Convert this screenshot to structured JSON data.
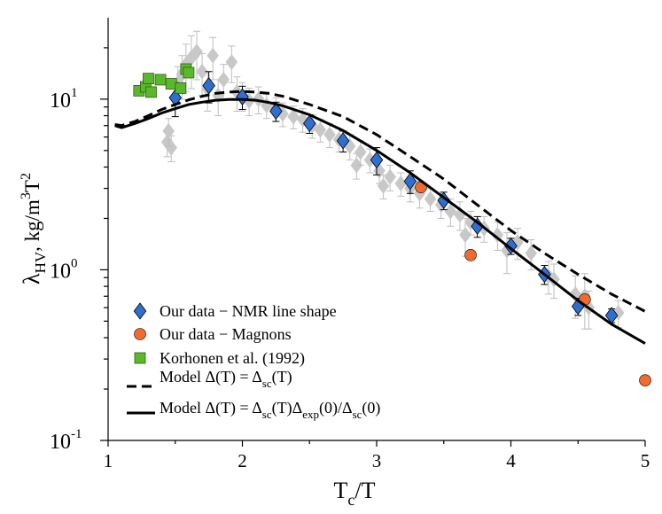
{
  "chart_data": {
    "type": "scatter",
    "title": "",
    "xlabel": {
      "main": "T",
      "sub": "c",
      "tail": "/T"
    },
    "ylabel": {
      "greek": "λ",
      "sub": "HV",
      "unit_a": ", kg/m",
      "sup3": "3",
      "unit_b": "T",
      "sup2": "2"
    },
    "xlim": [
      1,
      5
    ],
    "ylim": [
      0.1,
      30
    ],
    "yscale": "log",
    "x_ticks": [
      {
        "value": 1,
        "label": "1"
      },
      {
        "value": 2,
        "label": "2"
      },
      {
        "value": 3,
        "label": "3"
      },
      {
        "value": 4,
        "label": "4"
      },
      {
        "value": 5,
        "label": "5"
      }
    ],
    "y_ticks": [
      {
        "value": 0.1,
        "base": "10",
        "exp": "-1"
      },
      {
        "value": 1,
        "base": "10",
        "exp": "0"
      },
      {
        "value": 10,
        "base": "10",
        "exp": "1"
      }
    ],
    "legend_position": "bottom-left",
    "series": [
      {
        "name": "Gray background data",
        "marker": "diamond",
        "color": "#c8c8c8",
        "points": [
          {
            "x": 1.44,
            "y": 5.6,
            "err": 1.0
          },
          {
            "x": 1.47,
            "y": 5.2,
            "err": 0.9
          },
          {
            "x": 1.45,
            "y": 6.5,
            "err": 1.2
          },
          {
            "x": 1.52,
            "y": 12.5,
            "err": 3.0
          },
          {
            "x": 1.55,
            "y": 14.0,
            "err": 4.0
          },
          {
            "x": 1.58,
            "y": 16.0,
            "err": 5.0
          },
          {
            "x": 1.62,
            "y": 17.5,
            "err": 6.0
          },
          {
            "x": 1.66,
            "y": 19.0,
            "err": 6.0
          },
          {
            "x": 1.7,
            "y": 14.5,
            "err": 4.0
          },
          {
            "x": 1.74,
            "y": 11.5,
            "err": 3.0
          },
          {
            "x": 1.78,
            "y": 18.0,
            "err": 5.0
          },
          {
            "x": 1.82,
            "y": 10.5,
            "err": 2.5
          },
          {
            "x": 1.86,
            "y": 13.0,
            "err": 3.0
          },
          {
            "x": 1.92,
            "y": 16.5,
            "err": 4.0
          },
          {
            "x": 1.96,
            "y": 11.0,
            "err": 2.5
          },
          {
            "x": 2.0,
            "y": 10.5,
            "err": 2.0
          },
          {
            "x": 2.05,
            "y": 9.8,
            "err": 1.8
          },
          {
            "x": 2.12,
            "y": 10.0,
            "err": 1.8
          },
          {
            "x": 2.18,
            "y": 9.2,
            "err": 1.5
          },
          {
            "x": 2.25,
            "y": 8.8,
            "err": 1.4
          },
          {
            "x": 2.3,
            "y": 8.2,
            "err": 1.3
          },
          {
            "x": 2.38,
            "y": 7.9,
            "err": 1.2
          },
          {
            "x": 2.45,
            "y": 7.6,
            "err": 1.2
          },
          {
            "x": 2.52,
            "y": 7.0,
            "err": 1.1
          },
          {
            "x": 2.58,
            "y": 6.6,
            "err": 1.0
          },
          {
            "x": 2.65,
            "y": 6.2,
            "err": 1.0
          },
          {
            "x": 2.72,
            "y": 5.8,
            "err": 0.9
          },
          {
            "x": 2.8,
            "y": 5.3,
            "err": 0.9
          },
          {
            "x": 2.85,
            "y": 4.1,
            "err": 0.7
          },
          {
            "x": 2.88,
            "y": 4.9,
            "err": 0.8
          },
          {
            "x": 2.95,
            "y": 4.4,
            "err": 0.7
          },
          {
            "x": 3.02,
            "y": 3.8,
            "err": 0.6
          },
          {
            "x": 3.05,
            "y": 3.1,
            "err": 0.5
          },
          {
            "x": 3.1,
            "y": 3.5,
            "err": 0.6
          },
          {
            "x": 3.18,
            "y": 3.2,
            "err": 0.5
          },
          {
            "x": 3.25,
            "y": 3.0,
            "err": 0.5
          },
          {
            "x": 3.32,
            "y": 2.8,
            "err": 0.5
          },
          {
            "x": 3.4,
            "y": 2.6,
            "err": 0.4
          },
          {
            "x": 3.48,
            "y": 2.4,
            "err": 0.4
          },
          {
            "x": 3.55,
            "y": 2.2,
            "err": 0.4
          },
          {
            "x": 3.62,
            "y": 2.1,
            "err": 0.4
          },
          {
            "x": 3.66,
            "y": 1.6,
            "err": 0.4
          },
          {
            "x": 3.7,
            "y": 1.9,
            "err": 0.3
          },
          {
            "x": 3.8,
            "y": 1.75,
            "err": 0.3
          },
          {
            "x": 3.9,
            "y": 1.6,
            "err": 0.3
          },
          {
            "x": 3.97,
            "y": 1.3,
            "err": 0.35
          },
          {
            "x": 4.05,
            "y": 1.45,
            "err": 0.3
          },
          {
            "x": 4.15,
            "y": 1.25,
            "err": 0.25
          },
          {
            "x": 4.28,
            "y": 0.92,
            "err": 0.2
          },
          {
            "x": 4.32,
            "y": 0.88,
            "err": 0.2
          },
          {
            "x": 4.48,
            "y": 0.72,
            "err": 0.2
          },
          {
            "x": 4.55,
            "y": 0.7,
            "err": 0.25
          },
          {
            "x": 4.58,
            "y": 0.6,
            "err": 0.15
          },
          {
            "x": 4.8,
            "y": 0.56,
            "err": 0.1
          }
        ]
      },
      {
        "name": "Our data − NMR line shape",
        "marker": "diamond",
        "color": "#2f6fd0",
        "points": [
          {
            "x": 1.5,
            "y": 10.2,
            "err": 2.3
          },
          {
            "x": 1.75,
            "y": 12.0,
            "err": 2.5
          },
          {
            "x": 2.0,
            "y": 10.3,
            "err": 1.6
          },
          {
            "x": 2.25,
            "y": 8.5,
            "err": 1.1
          },
          {
            "x": 2.5,
            "y": 7.2,
            "err": 0.9
          },
          {
            "x": 2.75,
            "y": 5.7,
            "err": 0.8
          },
          {
            "x": 3.0,
            "y": 4.4,
            "err": 0.8
          },
          {
            "x": 3.25,
            "y": 3.3,
            "err": 0.5
          },
          {
            "x": 3.5,
            "y": 2.55,
            "err": 0.3
          },
          {
            "x": 3.75,
            "y": 1.8,
            "err": 0.25
          },
          {
            "x": 4.0,
            "y": 1.38,
            "err": 0.15
          },
          {
            "x": 4.25,
            "y": 0.94,
            "err": 0.12
          },
          {
            "x": 4.5,
            "y": 0.61,
            "err": 0.07
          },
          {
            "x": 4.75,
            "y": 0.54,
            "err": 0.05
          }
        ]
      },
      {
        "name": "Our data − Magnons",
        "marker": "circle",
        "color": "#f26a2e",
        "points": [
          {
            "x": 3.33,
            "y": 3.05
          },
          {
            "x": 3.7,
            "y": 1.22
          },
          {
            "x": 4.55,
            "y": 0.67
          },
          {
            "x": 5.0,
            "y": 0.225
          }
        ]
      },
      {
        "name": "Korhonen et al. (1992)",
        "marker": "square",
        "color": "#5ab82a",
        "points": [
          {
            "x": 1.23,
            "y": 11.2
          },
          {
            "x": 1.28,
            "y": 11.8
          },
          {
            "x": 1.3,
            "y": 13.2
          },
          {
            "x": 1.32,
            "y": 11.0
          },
          {
            "x": 1.39,
            "y": 13.0
          },
          {
            "x": 1.47,
            "y": 12.3
          },
          {
            "x": 1.54,
            "y": 11.6
          },
          {
            "x": 1.58,
            "y": 15.0
          },
          {
            "x": 1.6,
            "y": 14.3
          }
        ]
      },
      {
        "name": "Model Δ(T) = Δsc(T)",
        "marker": "line",
        "dash": "dashed",
        "color": "#000000",
        "x": [
          1.05,
          1.1,
          1.2,
          1.3,
          1.4,
          1.5,
          1.6,
          1.7,
          1.8,
          1.9,
          2.0,
          2.1,
          2.2,
          2.3,
          2.5,
          2.75,
          3.0,
          3.25,
          3.5,
          3.75,
          4.0,
          4.25,
          4.5,
          4.75,
          5.0
        ],
        "y": [
          7.1,
          7.0,
          7.4,
          8.0,
          8.7,
          9.3,
          9.9,
          10.4,
          10.8,
          11.0,
          11.1,
          11.0,
          10.8,
          10.4,
          9.3,
          7.9,
          6.2,
          4.6,
          3.4,
          2.4,
          1.7,
          1.25,
          0.94,
          0.72,
          0.57
        ]
      },
      {
        "name": "Model Δ(T) = Δsc(T)Δexp(0)/Δsc(0)",
        "marker": "line",
        "dash": "solid",
        "color": "#000000",
        "x": [
          1.05,
          1.1,
          1.2,
          1.3,
          1.4,
          1.5,
          1.6,
          1.7,
          1.8,
          1.9,
          2.0,
          2.1,
          2.2,
          2.3,
          2.5,
          2.75,
          3.0,
          3.25,
          3.5,
          3.75,
          4.0,
          4.25,
          4.5,
          4.75,
          5.0
        ],
        "y": [
          7.0,
          6.8,
          7.2,
          7.7,
          8.3,
          8.8,
          9.3,
          9.6,
          9.85,
          9.95,
          9.95,
          9.85,
          9.55,
          9.15,
          8.1,
          6.55,
          5.0,
          3.7,
          2.65,
          1.9,
          1.33,
          0.94,
          0.66,
          0.48,
          0.37
        ]
      }
    ],
    "legend": [
      {
        "label": "Our data − NMR line shape",
        "marker": "diamond",
        "color": "#2f6fd0"
      },
      {
        "label": "Our data − Magnons",
        "marker": "circle",
        "color": "#f26a2e"
      },
      {
        "label": "Korhonen et al. (1992)",
        "marker": "square",
        "color": "#5ab82a"
      },
      {
        "marker": "dashed",
        "prefix": "Model Δ(T) = Δ",
        "sub1": "sc",
        "suffix": "(T)"
      },
      {
        "marker": "solid",
        "prefix": "Model Δ(T) = Δ",
        "sub1": "sc",
        "mid1": "(T)Δ",
        "sub2": "exp",
        "mid2": "(0)/Δ",
        "sub3": "sc",
        "suffix": "(0)"
      }
    ]
  }
}
